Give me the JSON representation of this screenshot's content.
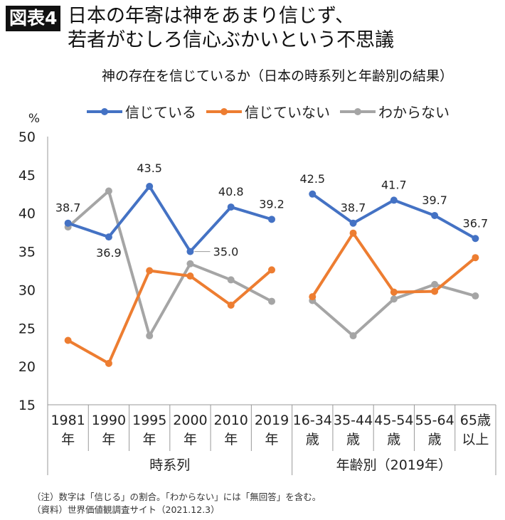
{
  "header": {
    "badge": "図表4",
    "title_line1": "日本の年寄は神をあまり信じず、",
    "title_line2": "若者がむしろ信心ぶかいという不思議"
  },
  "notes": [
    "（注）数字は「信じる」の割合。「わからない」には「無回答」を含む。",
    "（資料）世界価値観調査サイト（2021.12.3）"
  ],
  "chart_data": {
    "type": "line",
    "title": "神の存在を信じているか（日本の時系列と年齢別の結果）",
    "ylabel": "%",
    "ylim": [
      15,
      50
    ],
    "yticks": [
      15,
      20,
      25,
      30,
      35,
      40,
      45,
      50
    ],
    "grid": false,
    "legend_position": "top",
    "categories": [
      [
        "1981",
        "年"
      ],
      [
        "1990",
        "年"
      ],
      [
        "1995",
        "年"
      ],
      [
        "2000",
        "年"
      ],
      [
        "2010",
        "年"
      ],
      [
        "2019",
        "年"
      ],
      [
        "16-34",
        "歳"
      ],
      [
        "35-44",
        "歳"
      ],
      [
        "45-54",
        "歳"
      ],
      [
        "55-64",
        "歳"
      ],
      [
        "65歳",
        "以上"
      ]
    ],
    "groups": [
      {
        "label": "時系列",
        "count": 6
      },
      {
        "label": "年齢別（2019年）",
        "count": 5
      }
    ],
    "series": [
      {
        "name": "信じている",
        "color": "#4472C4",
        "values": [
          38.7,
          36.9,
          43.5,
          35.0,
          40.8,
          39.2,
          42.5,
          38.7,
          41.7,
          39.7,
          36.7
        ],
        "labels": [
          "38.7",
          "36.9",
          "43.5",
          "35.0",
          "40.8",
          "39.2",
          "42.5",
          "38.7",
          "41.7",
          "39.7",
          "36.7"
        ]
      },
      {
        "name": "信じていない",
        "color": "#ED7D31",
        "values": [
          23.4,
          20.4,
          32.5,
          31.8,
          28.0,
          32.6,
          29.1,
          37.4,
          29.7,
          29.8,
          34.2
        ]
      },
      {
        "name": "わからない",
        "color": "#A5A5A5",
        "values": [
          38.2,
          42.9,
          24.0,
          33.4,
          31.3,
          28.5,
          28.6,
          24.0,
          28.8,
          30.7,
          29.2
        ]
      }
    ]
  }
}
